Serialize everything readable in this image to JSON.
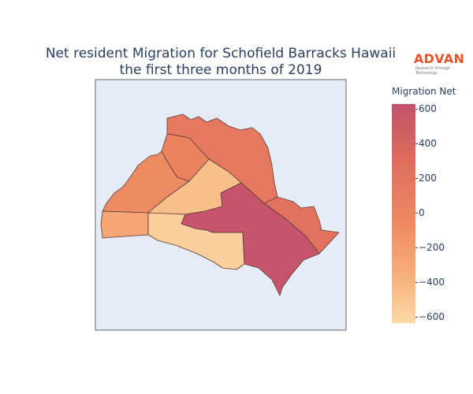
{
  "title_line1": "Net resident Migration for Schofield Barracks Hawaii",
  "title_line2": "the first three months of 2019",
  "logo": {
    "word": "ADVAN",
    "tagline": "Research through Technology",
    "color": "#e8542a"
  },
  "colorbar": {
    "title": "Migration Net",
    "ticks": [
      "600",
      "400",
      "200",
      "0",
      "−200",
      "−400",
      "−600"
    ],
    "range": [
      -640,
      620
    ],
    "colors": [
      "#fcd9a6",
      "#f8b27c",
      "#ef8a62",
      "#de6b5c",
      "#c4526c"
    ]
  },
  "map": {
    "background": "#e5ecf6",
    "border_color": "#5a3a3a"
  },
  "regions": [
    {
      "id": "north-large",
      "value": 170
    },
    {
      "id": "north-middle",
      "value": 60
    },
    {
      "id": "west-upper",
      "value": -20
    },
    {
      "id": "center-upper",
      "value": -430
    },
    {
      "id": "west-lower",
      "value": -230
    },
    {
      "id": "center-lower",
      "value": -560
    },
    {
      "id": "southeast",
      "value": 600
    },
    {
      "id": "east-strip",
      "value": 230
    }
  ]
}
